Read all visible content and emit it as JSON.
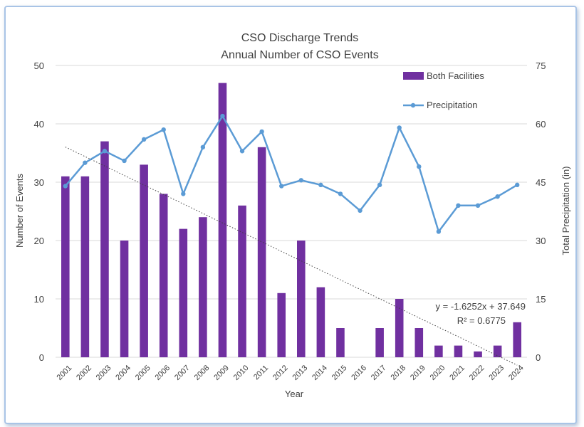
{
  "chart_data": {
    "type": "bar+line",
    "title": "CSO Discharge Trends",
    "subtitle": "Annual Number of CSO Events",
    "xlabel": "Year",
    "ylabel": "Number of Events",
    "y2label": "Total Precipitation (in)",
    "ylim": [
      0,
      50
    ],
    "y2lim": [
      0,
      75
    ],
    "yticks": [
      0,
      10,
      20,
      30,
      40,
      50
    ],
    "y2ticks": [
      0,
      15,
      30,
      45,
      60,
      75
    ],
    "categories": [
      "2001",
      "2002",
      "2003",
      "2004",
      "2005",
      "2006",
      "2007",
      "2008",
      "2009",
      "2010",
      "2011",
      "2012",
      "2013",
      "2014",
      "2015",
      "2016",
      "2017",
      "2018",
      "2019",
      "2020",
      "2021",
      "2022",
      "2023",
      "2024"
    ],
    "series": [
      {
        "name": "Both Facilities",
        "type": "bar",
        "axis": "left",
        "color": "#7030a0",
        "values": [
          31,
          31,
          37,
          20,
          33,
          28,
          22,
          24,
          47,
          26,
          36,
          11,
          20,
          12,
          5,
          0,
          5,
          10,
          5,
          2,
          2,
          1,
          2,
          6
        ]
      },
      {
        "name": "Precipitation",
        "type": "line",
        "axis": "right",
        "color": "#5b9bd5",
        "values": [
          44,
          50,
          53,
          50.5,
          56,
          58.5,
          42,
          54,
          62,
          53,
          58,
          44,
          45.5,
          44.3,
          42,
          37.7,
          44.3,
          59,
          49,
          32.3,
          39,
          39,
          41.3,
          44.3
        ]
      }
    ],
    "trendline": {
      "series": "Both Facilities",
      "slope": -1.6252,
      "intercept": 37.649,
      "equation": "y = -1.6252x + 37.649",
      "r2": "R² = 0.6775",
      "color": "#404040"
    },
    "legend_position": "top-right"
  }
}
